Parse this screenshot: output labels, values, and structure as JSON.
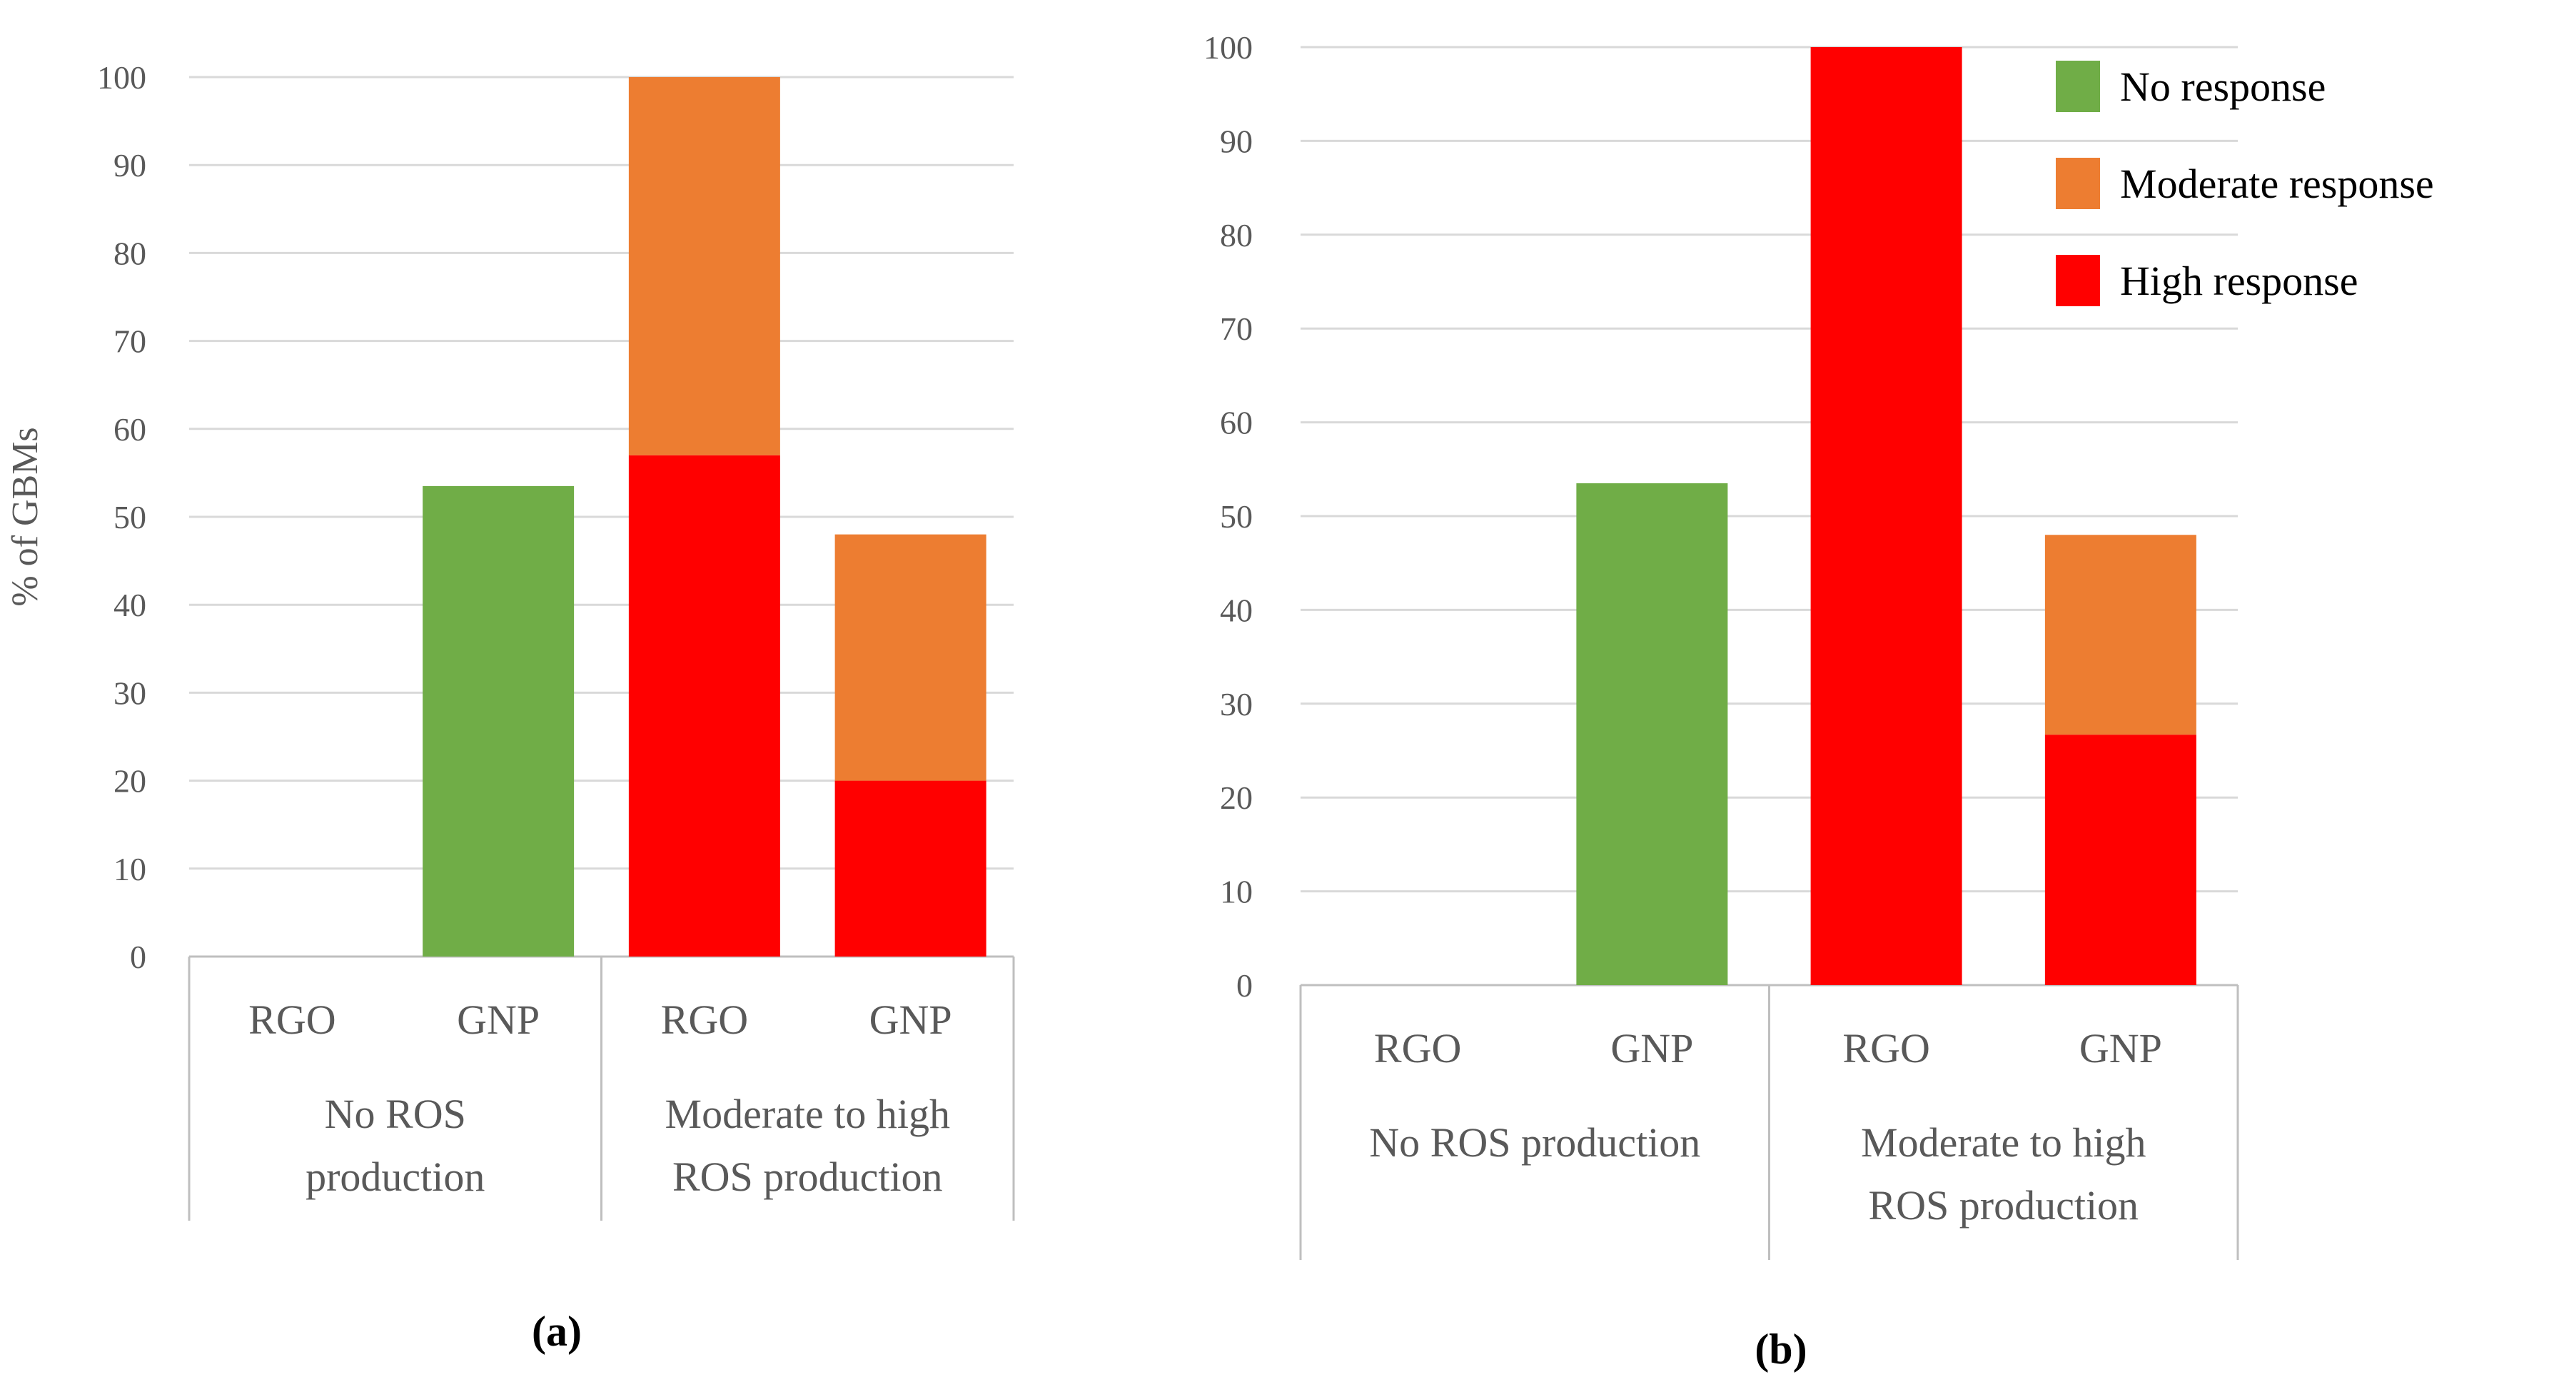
{
  "colors": {
    "no_response": "#70AD47",
    "moderate_response": "#ED7D31",
    "high_response": "#FF0000"
  },
  "legend": [
    {
      "key": "no_response",
      "label": "No response"
    },
    {
      "key": "moderate_response",
      "label": "Moderate response"
    },
    {
      "key": "high_response",
      "label": "High response"
    }
  ],
  "chart_data": [
    {
      "type": "bar",
      "stacked": true,
      "caption": "(a)",
      "ylabel": "% of GBMs",
      "ylim": [
        0,
        100
      ],
      "yticks": [
        0,
        10,
        20,
        30,
        40,
        50,
        60,
        70,
        80,
        90,
        100
      ],
      "categories": [
        "RGO",
        "GNP",
        "RGO",
        "GNP"
      ],
      "groups": [
        {
          "label_lines": [
            "No ROS",
            "production"
          ],
          "categories": [
            0,
            1
          ]
        },
        {
          "label_lines": [
            "Moderate to high",
            "ROS production"
          ],
          "categories": [
            2,
            3
          ]
        }
      ],
      "series": [
        {
          "name": "No response",
          "key": "no_response",
          "values": [
            0,
            53.5,
            0,
            0
          ]
        },
        {
          "name": "High response",
          "key": "high_response",
          "values": [
            0,
            0,
            57,
            20
          ]
        },
        {
          "name": "Moderate response",
          "key": "moderate_response",
          "values": [
            0,
            0,
            43,
            28
          ]
        }
      ]
    },
    {
      "type": "bar",
      "stacked": true,
      "caption": "(b)",
      "ylabel": "",
      "ylim": [
        0,
        100
      ],
      "yticks": [
        0,
        10,
        20,
        30,
        40,
        50,
        60,
        70,
        80,
        90,
        100
      ],
      "categories": [
        "RGO",
        "GNP",
        "RGO",
        "GNP"
      ],
      "groups": [
        {
          "label_lines": [
            "No ROS production"
          ],
          "categories": [
            0,
            1
          ]
        },
        {
          "label_lines": [
            "Moderate to high",
            "ROS production"
          ],
          "categories": [
            2,
            3
          ]
        }
      ],
      "series": [
        {
          "name": "No response",
          "key": "no_response",
          "values": [
            0,
            53.5,
            0,
            0
          ]
        },
        {
          "name": "High response",
          "key": "high_response",
          "values": [
            0,
            0,
            100,
            26.7
          ]
        },
        {
          "name": "Moderate response",
          "key": "moderate_response",
          "values": [
            0,
            0,
            0,
            21.3
          ]
        }
      ]
    }
  ]
}
